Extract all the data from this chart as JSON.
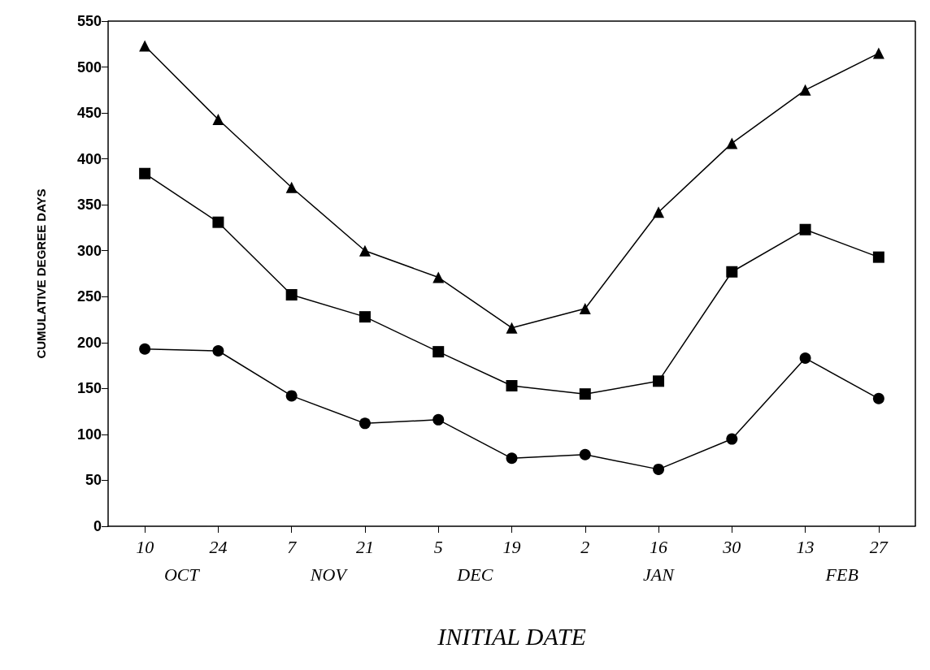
{
  "chart_data": {
    "type": "line",
    "xlabel": "INITIAL DATE",
    "ylabel": "CUMULATIVE DEGREE DAYS",
    "categories": [
      "10",
      "24",
      "7",
      "21",
      "5",
      "19",
      "2",
      "16",
      "30",
      "13",
      "27"
    ],
    "series": [
      {
        "color": "#000000",
        "marker": "triangle",
        "values": [
          523,
          443,
          369,
          300,
          271,
          216,
          237,
          342,
          417,
          475,
          515
        ]
      },
      {
        "color": "#000000",
        "marker": "square",
        "values": [
          384,
          331,
          252,
          228,
          190,
          153,
          144,
          158,
          277,
          323,
          293
        ]
      },
      {
        "color": "#000000",
        "marker": "circle",
        "values": [
          193,
          191,
          142,
          112,
          116,
          74,
          78,
          62,
          95,
          183,
          139
        ]
      }
    ],
    "ylim": [
      0,
      550
    ],
    "yticks": [
      0,
      50,
      100,
      150,
      200,
      250,
      300,
      350,
      400,
      450,
      500,
      550
    ],
    "annotations": [
      "OCT",
      "NOV",
      "DEC",
      "JAN",
      "FEB"
    ],
    "grid": false,
    "line_style": "solid"
  }
}
